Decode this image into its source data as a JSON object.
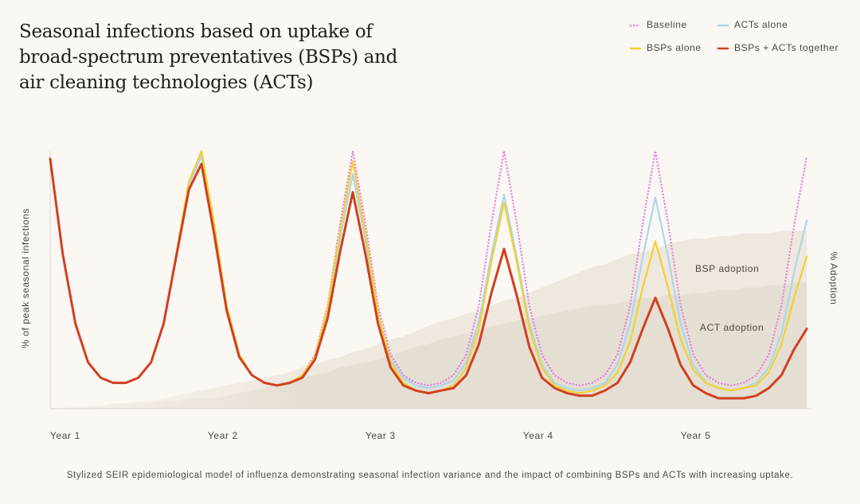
{
  "chart_data": {
    "type": "line",
    "title": "Seasonal infections based on uptake of broad-spectrum preventatives (BSPs) and air cleaning technologies (ACTs)",
    "y_label": "% of peak seasonal infections",
    "y2_label": "% Adoption",
    "caption": "Stylized SEIR epidemiological model of influenza demonstrating seasonal infection variance and the impact of combining BSPs and ACTs with increasing uptake.",
    "x": [
      1.0,
      1.08,
      1.16,
      1.24,
      1.32,
      1.4,
      1.48,
      1.56,
      1.64,
      1.72,
      1.8,
      1.88,
      1.96,
      2.04,
      2.12,
      2.2,
      2.28,
      2.36,
      2.44,
      2.52,
      2.6,
      2.68,
      2.76,
      2.84,
      2.92,
      3.0,
      3.08,
      3.16,
      3.24,
      3.32,
      3.4,
      3.48,
      3.56,
      3.64,
      3.72,
      3.8,
      3.88,
      3.96,
      4.04,
      4.12,
      4.2,
      4.28,
      4.36,
      4.44,
      4.52,
      4.6,
      4.68,
      4.76,
      4.84,
      4.92,
      5.0,
      5.08,
      5.16,
      5.24,
      5.32,
      5.4,
      5.48,
      5.56,
      5.64,
      5.72,
      5.8
    ],
    "xlim": [
      1,
      5.83
    ],
    "xticks": [
      {
        "value": 1,
        "label": "Year 1"
      },
      {
        "value": 2,
        "label": "Year 2"
      },
      {
        "value": 3,
        "label": "Year 3"
      },
      {
        "value": 4,
        "label": "Year 4"
      },
      {
        "value": 5,
        "label": "Year 5"
      }
    ],
    "ylim": [
      0,
      100
    ],
    "y2lim": [
      0,
      100
    ],
    "series": [
      {
        "name": "BSP adoption",
        "color": "#ece5dc",
        "style": "area",
        "axis": "y2",
        "values": [
          0,
          0,
          1,
          1,
          1,
          2,
          2,
          3,
          3,
          4,
          5,
          6,
          7,
          8,
          9,
          10,
          11,
          12,
          13,
          14,
          16,
          17,
          19,
          20,
          22,
          23,
          25,
          27,
          28,
          30,
          32,
          34,
          35,
          37,
          38,
          40,
          42,
          43,
          45,
          47,
          49,
          51,
          53,
          55,
          56,
          58,
          60,
          61,
          62,
          64,
          65,
          66,
          66,
          67,
          67,
          68,
          68,
          68,
          69,
          69,
          69
        ]
      },
      {
        "name": "ACT adoption",
        "color": "#e4ddd1",
        "style": "area",
        "axis": "y2",
        "values": [
          0,
          0,
          0,
          1,
          1,
          2,
          2,
          2,
          2,
          3,
          3,
          4,
          4,
          4,
          5,
          6,
          7,
          8,
          10,
          11,
          12,
          13,
          14,
          16,
          17,
          18,
          19,
          21,
          22,
          24,
          25,
          27,
          28,
          29,
          30,
          32,
          33,
          34,
          35,
          36,
          37,
          38,
          39,
          40,
          40,
          41,
          42,
          43,
          43,
          44,
          44,
          45,
          45,
          46,
          46,
          47,
          47,
          48,
          48,
          49,
          49
        ]
      },
      {
        "name": "Baseline",
        "color": "#e483e0",
        "style": "dotted",
        "values": [
          97,
          60,
          33,
          18,
          12,
          10,
          10,
          12,
          18,
          33,
          60,
          88,
          100,
          72,
          40,
          21,
          13,
          10,
          9,
          10,
          13,
          21,
          40,
          72,
          100,
          72,
          40,
          21,
          13,
          10,
          9,
          10,
          13,
          21,
          40,
          72,
          100,
          72,
          40,
          21,
          13,
          10,
          9,
          10,
          13,
          21,
          40,
          72,
          100,
          72,
          40,
          21,
          13,
          10,
          9,
          10,
          13,
          21,
          40,
          71,
          98
        ]
      },
      {
        "name": "ACTs alone",
        "color": "#acd6ea",
        "style": "solid",
        "values": [
          97,
          60,
          33,
          18,
          12,
          10,
          10,
          12,
          18,
          33,
          60,
          87,
          98,
          70,
          39,
          21,
          13,
          10,
          9,
          10,
          13,
          20,
          37,
          66,
          91,
          65,
          36,
          19,
          12,
          9,
          8,
          9,
          11,
          18,
          34,
          60,
          83,
          59,
          33,
          17,
          10,
          8,
          7,
          8,
          10,
          17,
          33,
          59,
          82,
          59,
          33,
          17,
          10,
          8,
          7,
          8,
          10,
          16,
          29,
          53,
          73
        ]
      },
      {
        "name": "BSPs alone",
        "color": "#f1d230",
        "style": "solid",
        "values": [
          97,
          60,
          33,
          18,
          12,
          10,
          10,
          12,
          18,
          33,
          60,
          88,
          100,
          72,
          40,
          21,
          13,
          10,
          9,
          10,
          13,
          20,
          39,
          69,
          96,
          68,
          37,
          18,
          10,
          7,
          6,
          7,
          9,
          16,
          31,
          57,
          80,
          57,
          31,
          16,
          9,
          7,
          6,
          7,
          9,
          14,
          26,
          47,
          65,
          47,
          27,
          15,
          10,
          8,
          7,
          8,
          9,
          14,
          25,
          43,
          59
        ]
      },
      {
        "name": "BSPs + ACTs together",
        "color": "#d0401f",
        "style": "solid",
        "width": 3,
        "values": [
          97,
          60,
          33,
          18,
          12,
          10,
          10,
          12,
          18,
          33,
          59,
          85,
          95,
          68,
          38,
          20,
          13,
          10,
          9,
          10,
          12,
          19,
          35,
          61,
          84,
          60,
          33,
          16,
          9,
          7,
          6,
          7,
          8,
          13,
          25,
          45,
          62,
          44,
          24,
          12,
          8,
          6,
          5,
          5,
          7,
          10,
          18,
          31,
          43,
          31,
          17,
          9,
          6,
          4,
          4,
          4,
          5,
          8,
          13,
          23,
          31
        ]
      }
    ]
  }
}
